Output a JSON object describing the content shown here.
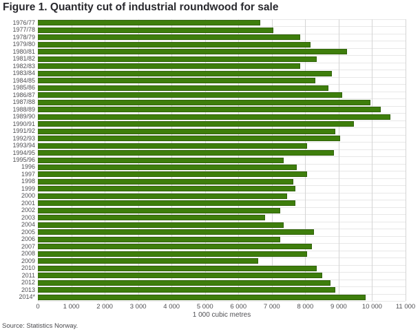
{
  "page": {
    "title": "Figure 1. Quantity cut of industrial roundwood for sale",
    "source": "Source: Statistics Norway."
  },
  "chart_data": {
    "type": "bar",
    "orientation": "horizontal",
    "title": "Figure 1. Quantity cut of industrial roundwood for sale",
    "xlabel": "1 000 cubic metres",
    "ylabel": "",
    "xlim": [
      0,
      11000
    ],
    "xticks": [
      0,
      1000,
      2000,
      3000,
      4000,
      5000,
      6000,
      7000,
      8000,
      9000,
      10000,
      11000
    ],
    "xtick_labels": [
      "0",
      "1 000",
      "2 000",
      "3 000",
      "4 000",
      "5 000",
      "6 000",
      "7 000",
      "8 000",
      "9 000",
      "10 000",
      "11 000"
    ],
    "grid": true,
    "legend": "none",
    "bar_color": "#3e7e0c",
    "grid_color": "#d4d4d4",
    "row_line_color": "#e7e7e7",
    "categories": [
      "1976/77",
      "1977/78",
      "1978/79",
      "1979/80",
      "1980/81",
      "1981/82",
      "1982/83",
      "1983/84",
      "1984/85",
      "1985/86",
      "1986/87",
      "1987/88",
      "1988/89",
      "1989/90",
      "1990/91",
      "1991/92",
      "1992/93",
      "1993/94",
      "1994/95",
      "1995/96",
      "1996",
      "1997",
      "1998",
      "1999",
      "2000",
      "2001",
      "2002",
      "2003",
      "2004",
      "2005",
      "2006",
      "2007",
      "2008",
      "2009",
      "2010",
      "2011",
      "2012",
      "2013",
      "2014*"
    ],
    "values": [
      6650,
      7050,
      7850,
      8150,
      9250,
      8350,
      7850,
      8800,
      8300,
      8700,
      9100,
      9950,
      10250,
      10550,
      9450,
      8900,
      9050,
      8050,
      8850,
      7350,
      7750,
      8050,
      7650,
      7700,
      7450,
      7700,
      7250,
      6800,
      7350,
      8250,
      7250,
      8200,
      8050,
      6600,
      8350,
      8500,
      8750,
      8900,
      9800
    ],
    "source": "Source: Statistics Norway."
  }
}
